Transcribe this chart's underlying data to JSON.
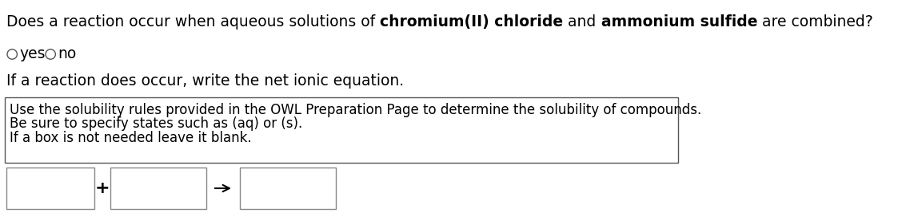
{
  "bg_color": "#ffffff",
  "question_parts": [
    {
      "text": "Does a reaction occur when aqueous solutions of ",
      "bold": false
    },
    {
      "text": "chromium(II) chloride",
      "bold": true
    },
    {
      "text": " and ",
      "bold": false
    },
    {
      "text": "ammonium sulfide",
      "bold": true
    },
    {
      "text": " are combined?",
      "bold": false
    }
  ],
  "radio_yes": "yes",
  "radio_no": "no",
  "subtitle": "If a reaction does occur, write the net ionic equation.",
  "hint_line1": "Use the solubility rules provided in the OWL Preparation Page to determine the solubility of compounds.",
  "hint_line2": "Be sure to specify states such as (aq) or (s).",
  "hint_line3": "If a box is not needed leave it blank.",
  "hint_text_color": "#000000",
  "hint_box_edgecolor": "#555555",
  "question_text_color": "#000000",
  "subtitle_color": "#000000",
  "radio_circle_color": "#555555",
  "box_border_color": "#888888",
  "plus_color": "#000000",
  "arrow_color": "#000000",
  "font_size_question": 13.5,
  "font_size_radio": 13.5,
  "font_size_subtitle": 13.5,
  "font_size_hint": 12.0,
  "figsize": [
    11.53,
    2.72
  ],
  "dpi": 100
}
